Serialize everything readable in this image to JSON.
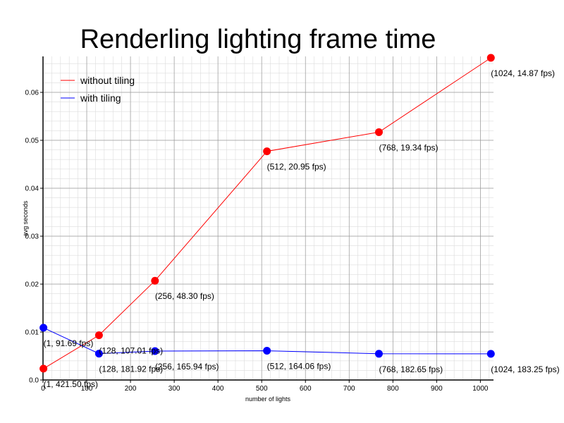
{
  "chart_data": {
    "type": "line",
    "title": "Renderling lighting frame time",
    "xlabel": "number of lights",
    "ylabel": "avg seconds",
    "xlim": [
      0,
      1030
    ],
    "ylim": [
      0,
      0.0675
    ],
    "x_ticks": [
      0,
      100,
      200,
      300,
      400,
      500,
      600,
      700,
      800,
      900,
      1000
    ],
    "y_ticks": [
      0.0,
      0.01,
      0.02,
      0.03,
      0.04,
      0.05,
      0.06
    ],
    "x_tick_labels": [
      "0",
      "100",
      "200",
      "300",
      "400",
      "500",
      "600",
      "700",
      "800",
      "900",
      "1000"
    ],
    "y_tick_labels": [
      "0.0",
      "0.01",
      "0.02",
      "0.03",
      "0.04",
      "0.05",
      "0.06"
    ],
    "grid": true,
    "legend_position": "top-left",
    "series": [
      {
        "name": "without tiling",
        "color": "#ff0000",
        "points": [
          {
            "x": 1,
            "y": 0.00237,
            "label": "(1, 421.50 fps)"
          },
          {
            "x": 128,
            "y": 0.00934,
            "label": "(128, 107.01 fps)"
          },
          {
            "x": 256,
            "y": 0.0207,
            "label": "(256, 48.30 fps)"
          },
          {
            "x": 512,
            "y": 0.0477,
            "label": "(512, 20.95 fps)"
          },
          {
            "x": 768,
            "y": 0.0517,
            "label": "(768, 19.34 fps)"
          },
          {
            "x": 1024,
            "y": 0.0672,
            "label": "(1024, 14.87 fps)"
          }
        ]
      },
      {
        "name": "with tiling",
        "color": "#0000ff",
        "points": [
          {
            "x": 1,
            "y": 0.0109,
            "label": "(1, 91.69 fps)"
          },
          {
            "x": 128,
            "y": 0.0055,
            "label": "(128, 181.92 fps)"
          },
          {
            "x": 256,
            "y": 0.00603,
            "label": "(256, 165.94 fps)"
          },
          {
            "x": 512,
            "y": 0.0061,
            "label": "(512, 164.06 fps)"
          },
          {
            "x": 768,
            "y": 0.00547,
            "label": "(768, 182.65 fps)"
          },
          {
            "x": 1024,
            "y": 0.00546,
            "label": "(1024, 183.25 fps)"
          }
        ]
      }
    ]
  }
}
